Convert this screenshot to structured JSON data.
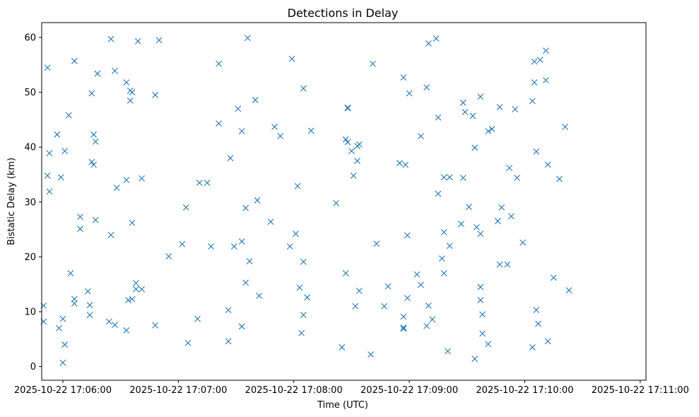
{
  "chart_data": {
    "type": "scatter",
    "title": "Detections in Delay",
    "xlabel": "Time (UTC)",
    "ylabel": "Bistatic Delay (km)",
    "marker": "x",
    "color": "#1f77b4",
    "grid": false,
    "x_ticks": [
      "2025-10-22 17:06:00",
      "2025-10-22 17:07:00",
      "2025-10-22 17:08:00",
      "2025-10-22 17:09:00",
      "2025-10-22 17:10:00",
      "2025-10-22 17:11:00"
    ],
    "y_ticks": [
      0,
      10,
      20,
      30,
      40,
      50,
      60
    ],
    "xlim": [
      "2025-10-22 17:05:49",
      "2025-10-22 17:11:03"
    ],
    "ylim": [
      -2.5,
      62.7
    ],
    "points": [
      {
        "t": "2025-10-22 17:05:50",
        "y": 11.1
      },
      {
        "t": "2025-10-22 17:05:50",
        "y": 8.2
      },
      {
        "t": "2025-10-22 17:05:52",
        "y": 54.5
      },
      {
        "t": "2025-10-22 17:05:52",
        "y": 34.8
      },
      {
        "t": "2025-10-22 17:05:53",
        "y": 31.9
      },
      {
        "t": "2025-10-22 17:05:53",
        "y": 38.9
      },
      {
        "t": "2025-10-22 17:05:57",
        "y": 42.3
      },
      {
        "t": "2025-10-22 17:05:58",
        "y": 7.0
      },
      {
        "t": "2025-10-22 17:05:59",
        "y": 34.5
      },
      {
        "t": "2025-10-22 17:06:00",
        "y": 8.7
      },
      {
        "t": "2025-10-22 17:06:00",
        "y": 0.7
      },
      {
        "t": "2025-10-22 17:06:01",
        "y": 4.0
      },
      {
        "t": "2025-10-22 17:06:01",
        "y": 39.3
      },
      {
        "t": "2025-10-22 17:06:03",
        "y": 45.8
      },
      {
        "t": "2025-10-22 17:06:04",
        "y": 17.0
      },
      {
        "t": "2025-10-22 17:06:06",
        "y": 12.3
      },
      {
        "t": "2025-10-22 17:06:06",
        "y": 11.5
      },
      {
        "t": "2025-10-22 17:06:06",
        "y": 55.7
      },
      {
        "t": "2025-10-22 17:06:09",
        "y": 27.3
      },
      {
        "t": "2025-10-22 17:06:09",
        "y": 25.1
      },
      {
        "t": "2025-10-22 17:06:13",
        "y": 13.7
      },
      {
        "t": "2025-10-22 17:06:14",
        "y": 11.2
      },
      {
        "t": "2025-10-22 17:06:14",
        "y": 9.4
      },
      {
        "t": "2025-10-22 17:06:15",
        "y": 49.8
      },
      {
        "t": "2025-10-22 17:06:15",
        "y": 37.3
      },
      {
        "t": "2025-10-22 17:06:16",
        "y": 36.8
      },
      {
        "t": "2025-10-22 17:06:16",
        "y": 42.3
      },
      {
        "t": "2025-10-22 17:06:17",
        "y": 41.0
      },
      {
        "t": "2025-10-22 17:06:17",
        "y": 26.7
      },
      {
        "t": "2025-10-22 17:06:18",
        "y": 53.4
      },
      {
        "t": "2025-10-22 17:06:24",
        "y": 8.2
      },
      {
        "t": "2025-10-22 17:06:25",
        "y": 59.7
      },
      {
        "t": "2025-10-22 17:06:25",
        "y": 24.0
      },
      {
        "t": "2025-10-22 17:06:27",
        "y": 7.6
      },
      {
        "t": "2025-10-22 17:06:27",
        "y": 53.9
      },
      {
        "t": "2025-10-22 17:06:28",
        "y": 32.6
      },
      {
        "t": "2025-10-22 17:06:33",
        "y": 51.8
      },
      {
        "t": "2025-10-22 17:06:33",
        "y": 34.0
      },
      {
        "t": "2025-10-22 17:06:33",
        "y": 6.6
      },
      {
        "t": "2025-10-22 17:06:34",
        "y": 12.1
      },
      {
        "t": "2025-10-22 17:06:35",
        "y": 50.3
      },
      {
        "t": "2025-10-22 17:06:35",
        "y": 48.5
      },
      {
        "t": "2025-10-22 17:06:36",
        "y": 50.0
      },
      {
        "t": "2025-10-22 17:06:36",
        "y": 12.3
      },
      {
        "t": "2025-10-22 17:06:36",
        "y": 26.2
      },
      {
        "t": "2025-10-22 17:06:38",
        "y": 15.2
      },
      {
        "t": "2025-10-22 17:06:38",
        "y": 14.1
      },
      {
        "t": "2025-10-22 17:06:39",
        "y": 59.3
      },
      {
        "t": "2025-10-22 17:06:41",
        "y": 14.1
      },
      {
        "t": "2025-10-22 17:06:41",
        "y": 34.3
      },
      {
        "t": "2025-10-22 17:06:48",
        "y": 49.5
      },
      {
        "t": "2025-10-22 17:06:48",
        "y": 7.5
      },
      {
        "t": "2025-10-22 17:06:50",
        "y": 59.5
      },
      {
        "t": "2025-10-22 17:06:55",
        "y": 20.1
      },
      {
        "t": "2025-10-22 17:07:02",
        "y": 22.3
      },
      {
        "t": "2025-10-22 17:07:04",
        "y": 29.0
      },
      {
        "t": "2025-10-22 17:07:05",
        "y": 4.3
      },
      {
        "t": "2025-10-22 17:07:10",
        "y": 8.7
      },
      {
        "t": "2025-10-22 17:07:11",
        "y": 33.5
      },
      {
        "t": "2025-10-22 17:07:15",
        "y": 33.5
      },
      {
        "t": "2025-10-22 17:07:17",
        "y": 21.9
      },
      {
        "t": "2025-10-22 17:07:21",
        "y": 55.2
      },
      {
        "t": "2025-10-22 17:07:21",
        "y": 44.3
      },
      {
        "t": "2025-10-22 17:07:26",
        "y": 4.6
      },
      {
        "t": "2025-10-22 17:07:26",
        "y": 10.3
      },
      {
        "t": "2025-10-22 17:07:27",
        "y": 38.0
      },
      {
        "t": "2025-10-22 17:07:29",
        "y": 21.9
      },
      {
        "t": "2025-10-22 17:07:31",
        "y": 47.0
      },
      {
        "t": "2025-10-22 17:07:33",
        "y": 22.8
      },
      {
        "t": "2025-10-22 17:07:33",
        "y": 42.9
      },
      {
        "t": "2025-10-22 17:07:33",
        "y": 7.3
      },
      {
        "t": "2025-10-22 17:07:35",
        "y": 15.3
      },
      {
        "t": "2025-10-22 17:07:35",
        "y": 28.9
      },
      {
        "t": "2025-10-22 17:07:36",
        "y": 59.9
      },
      {
        "t": "2025-10-22 17:07:37",
        "y": 19.2
      },
      {
        "t": "2025-10-22 17:07:40",
        "y": 48.6
      },
      {
        "t": "2025-10-22 17:07:41",
        "y": 30.3
      },
      {
        "t": "2025-10-22 17:07:42",
        "y": 12.9
      },
      {
        "t": "2025-10-22 17:07:48",
        "y": 26.4
      },
      {
        "t": "2025-10-22 17:07:50",
        "y": 43.7
      },
      {
        "t": "2025-10-22 17:07:53",
        "y": 42.0
      },
      {
        "t": "2025-10-22 17:07:58",
        "y": 21.9
      },
      {
        "t": "2025-10-22 17:07:59",
        "y": 56.1
      },
      {
        "t": "2025-10-22 17:08:01",
        "y": 24.2
      },
      {
        "t": "2025-10-22 17:08:02",
        "y": 32.9
      },
      {
        "t": "2025-10-22 17:08:03",
        "y": 14.4
      },
      {
        "t": "2025-10-22 17:08:04",
        "y": 6.1
      },
      {
        "t": "2025-10-22 17:08:05",
        "y": 50.7
      },
      {
        "t": "2025-10-22 17:08:05",
        "y": 9.4
      },
      {
        "t": "2025-10-22 17:08:05",
        "y": 19.1
      },
      {
        "t": "2025-10-22 17:08:07",
        "y": 12.6
      },
      {
        "t": "2025-10-22 17:08:09",
        "y": 43.0
      },
      {
        "t": "2025-10-22 17:08:22",
        "y": 29.8
      },
      {
        "t": "2025-10-22 17:08:25",
        "y": 3.5
      },
      {
        "t": "2025-10-22 17:08:27",
        "y": 17.0
      },
      {
        "t": "2025-10-22 17:08:27",
        "y": 41.4
      },
      {
        "t": "2025-10-22 17:08:28",
        "y": 47.2
      },
      {
        "t": "2025-10-22 17:08:28",
        "y": 47.1
      },
      {
        "t": "2025-10-22 17:08:28",
        "y": 40.9
      },
      {
        "t": "2025-10-22 17:08:30",
        "y": 39.3
      },
      {
        "t": "2025-10-22 17:08:31",
        "y": 34.8
      },
      {
        "t": "2025-10-22 17:08:32",
        "y": 11.0
      },
      {
        "t": "2025-10-22 17:08:33",
        "y": 37.5
      },
      {
        "t": "2025-10-22 17:08:33",
        "y": 40.2
      },
      {
        "t": "2025-10-22 17:08:34",
        "y": 13.8
      },
      {
        "t": "2025-10-22 17:08:34",
        "y": 40.5
      },
      {
        "t": "2025-10-22 17:08:40",
        "y": 2.2
      },
      {
        "t": "2025-10-22 17:08:41",
        "y": 55.2
      },
      {
        "t": "2025-10-22 17:08:43",
        "y": 22.4
      },
      {
        "t": "2025-10-22 17:08:47",
        "y": 11.0
      },
      {
        "t": "2025-10-22 17:08:49",
        "y": 14.6
      },
      {
        "t": "2025-10-22 17:08:55",
        "y": 37.1
      },
      {
        "t": "2025-10-22 17:08:57",
        "y": 9.1
      },
      {
        "t": "2025-10-22 17:08:57",
        "y": 7.1
      },
      {
        "t": "2025-10-22 17:08:57",
        "y": 6.9
      },
      {
        "t": "2025-10-22 17:08:57",
        "y": 52.7
      },
      {
        "t": "2025-10-22 17:08:58",
        "y": 36.8
      },
      {
        "t": "2025-10-22 17:08:59",
        "y": 23.9
      },
      {
        "t": "2025-10-22 17:08:59",
        "y": 12.5
      },
      {
        "t": "2025-10-22 17:09:00",
        "y": 49.8
      },
      {
        "t": "2025-10-22 17:09:04",
        "y": 16.8
      },
      {
        "t": "2025-10-22 17:09:06",
        "y": 14.9
      },
      {
        "t": "2025-10-22 17:09:06",
        "y": 42.0
      },
      {
        "t": "2025-10-22 17:09:09",
        "y": 50.9
      },
      {
        "t": "2025-10-22 17:09:09",
        "y": 7.4
      },
      {
        "t": "2025-10-22 17:09:10",
        "y": 11.1
      },
      {
        "t": "2025-10-22 17:09:10",
        "y": 58.9
      },
      {
        "t": "2025-10-22 17:09:12",
        "y": 8.6
      },
      {
        "t": "2025-10-22 17:09:14",
        "y": 59.8
      },
      {
        "t": "2025-10-22 17:09:15",
        "y": 45.4
      },
      {
        "t": "2025-10-22 17:09:15",
        "y": 31.5
      },
      {
        "t": "2025-10-22 17:09:17",
        "y": 19.7
      },
      {
        "t": "2025-10-22 17:09:18",
        "y": 24.5
      },
      {
        "t": "2025-10-22 17:09:18",
        "y": 17.0
      },
      {
        "t": "2025-10-22 17:09:18",
        "y": 34.5
      },
      {
        "t": "2025-10-22 17:09:20",
        "y": 2.8
      },
      {
        "t": "2025-10-22 17:09:21",
        "y": 34.5
      },
      {
        "t": "2025-10-22 17:09:21",
        "y": 22.0
      },
      {
        "t": "2025-10-22 17:09:27",
        "y": 26.0
      },
      {
        "t": "2025-10-22 17:09:28",
        "y": 48.1
      },
      {
        "t": "2025-10-22 17:09:28",
        "y": 34.4
      },
      {
        "t": "2025-10-22 17:09:29",
        "y": 46.4
      },
      {
        "t": "2025-10-22 17:09:31",
        "y": 29.1
      },
      {
        "t": "2025-10-22 17:09:33",
        "y": 45.7
      },
      {
        "t": "2025-10-22 17:09:34",
        "y": 1.4
      },
      {
        "t": "2025-10-22 17:09:34",
        "y": 39.9
      },
      {
        "t": "2025-10-22 17:09:35",
        "y": 25.4
      },
      {
        "t": "2025-10-22 17:09:37",
        "y": 49.2
      },
      {
        "t": "2025-10-22 17:09:37",
        "y": 14.5
      },
      {
        "t": "2025-10-22 17:09:37",
        "y": 24.2
      },
      {
        "t": "2025-10-22 17:09:37",
        "y": 12.1
      },
      {
        "t": "2025-10-22 17:09:38",
        "y": 6.0
      },
      {
        "t": "2025-10-22 17:09:38",
        "y": 9.5
      },
      {
        "t": "2025-10-22 17:09:41",
        "y": 42.9
      },
      {
        "t": "2025-10-22 17:09:41",
        "y": 4.1
      },
      {
        "t": "2025-10-22 17:09:43",
        "y": 43.3
      },
      {
        "t": "2025-10-22 17:09:46",
        "y": 26.5
      },
      {
        "t": "2025-10-22 17:09:47",
        "y": 47.3
      },
      {
        "t": "2025-10-22 17:09:47",
        "y": 18.6
      },
      {
        "t": "2025-10-22 17:09:48",
        "y": 29.0
      },
      {
        "t": "2025-10-22 17:09:51",
        "y": 18.6
      },
      {
        "t": "2025-10-22 17:09:52",
        "y": 36.2
      },
      {
        "t": "2025-10-22 17:09:53",
        "y": 27.4
      },
      {
        "t": "2025-10-22 17:09:55",
        "y": 46.9
      },
      {
        "t": "2025-10-22 17:09:56",
        "y": 34.4
      },
      {
        "t": "2025-10-22 17:09:59",
        "y": 22.6
      },
      {
        "t": "2025-10-22 17:10:04",
        "y": 3.5
      },
      {
        "t": "2025-10-22 17:10:04",
        "y": 48.4
      },
      {
        "t": "2025-10-22 17:10:05",
        "y": 55.6
      },
      {
        "t": "2025-10-22 17:10:05",
        "y": 51.8
      },
      {
        "t": "2025-10-22 17:10:06",
        "y": 39.2
      },
      {
        "t": "2025-10-22 17:10:06",
        "y": 10.3
      },
      {
        "t": "2025-10-22 17:10:07",
        "y": 7.8
      },
      {
        "t": "2025-10-22 17:10:08",
        "y": 55.9
      },
      {
        "t": "2025-10-22 17:10:11",
        "y": 57.6
      },
      {
        "t": "2025-10-22 17:10:11",
        "y": 52.2
      },
      {
        "t": "2025-10-22 17:10:12",
        "y": 36.8
      },
      {
        "t": "2025-10-22 17:10:12",
        "y": 4.6
      },
      {
        "t": "2025-10-22 17:10:15",
        "y": 16.2
      },
      {
        "t": "2025-10-22 17:10:18",
        "y": 34.2
      },
      {
        "t": "2025-10-22 17:10:21",
        "y": 43.7
      },
      {
        "t": "2025-10-22 17:10:23",
        "y": 13.9
      }
    ]
  }
}
